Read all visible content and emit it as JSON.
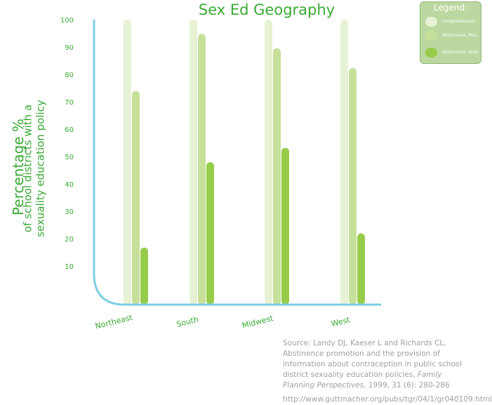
{
  "title": "Sex Ed Geography",
  "ylabel": "Percentage %",
  "ylabel_sub_1": "of school districts with a",
  "ylabel_sub_2": "sexuality education policy",
  "legend": {
    "title": "Legend:",
    "items": [
      {
        "label": "Comprehensive",
        "color": "#e6f2d3"
      },
      {
        "label": "Abstinence- Plus",
        "color": "#c6e09a"
      },
      {
        "label": "Abstinence- Only",
        "color": "#97cc4b"
      }
    ]
  },
  "source": {
    "line1": "Source: Landy DJ, Kaeser L and Richards CL,",
    "line2": "Abstinence promotion and the provision of",
    "line3": "information about contraception in public school",
    "line4": "district sexuality education policies,",
    "journal_1": "Family",
    "journal_2": "Planning Perspectives,",
    "citation": "1999, 31 (6): 280-286",
    "url": "http://www.guttmacher.org/pubs/tgr/04/1/gr040109.html"
  },
  "chart_data": {
    "type": "bar",
    "title": "Sex Ed Geography",
    "ylabel": "Percentage % of school districts with a sexuality education policy",
    "xlabel": "",
    "ylim": [
      0,
      100
    ],
    "yticks": [
      "10",
      "20",
      "30",
      "40",
      "50",
      "60",
      "70",
      "80",
      "90",
      "100"
    ],
    "categories": [
      "Northeast",
      "South",
      "Midwest",
      "West"
    ],
    "series": [
      {
        "name": "Comprehensive",
        "color": "#e6f2d3",
        "values": [
          100,
          100,
          100,
          100
        ]
      },
      {
        "name": "Abstinence- Plus",
        "color": "#c6e09a",
        "values": [
          75,
          95,
          90,
          83
        ]
      },
      {
        "name": "Abstinence- Only",
        "color": "#97cc4b",
        "values": [
          20,
          50,
          55,
          25
        ]
      }
    ],
    "legend": "top-right",
    "axis_color": "#7fcde3",
    "grid": false
  }
}
